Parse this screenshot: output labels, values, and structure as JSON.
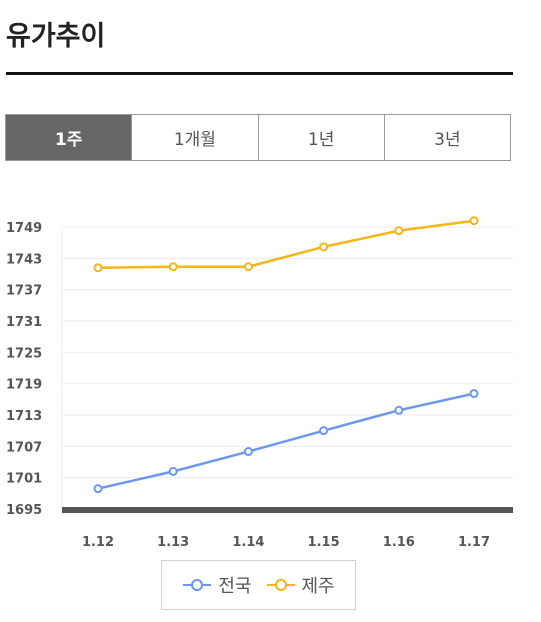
{
  "page": {
    "title": "유가추이"
  },
  "tabs": [
    {
      "label": "1주",
      "active": true
    },
    {
      "label": "1개월",
      "active": false
    },
    {
      "label": "1년",
      "active": false
    },
    {
      "label": "3년",
      "active": false
    }
  ],
  "colors": {
    "national": "#6b98ee",
    "jeju": "#f5b617",
    "axis": "#555555",
    "grid": "#ececec"
  },
  "chart_data": {
    "type": "line",
    "categories": [
      "1.12",
      "1.13",
      "1.14",
      "1.15",
      "1.16",
      "1.17"
    ],
    "ylim": [
      1695,
      1749
    ],
    "yticks": [
      "1695",
      "1701",
      "1707",
      "1713",
      "1719",
      "1725",
      "1731",
      "1737",
      "1743",
      "1749"
    ],
    "grid": true,
    "legend_position": "bottom",
    "series": [
      {
        "name": "전국",
        "color": "#6b98ee",
        "values": [
          1698.9,
          1702.2,
          1706.0,
          1710.0,
          1713.9,
          1717.1
        ]
      },
      {
        "name": "제주",
        "color": "#f5b617",
        "values": [
          1741.2,
          1741.4,
          1741.4,
          1745.2,
          1748.3,
          1750.2
        ]
      }
    ]
  }
}
